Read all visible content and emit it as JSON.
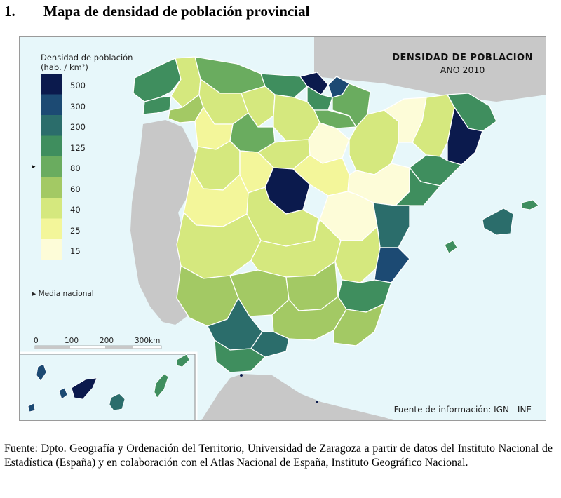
{
  "heading": {
    "number": "1.",
    "title": "Mapa de densidad de población provincial"
  },
  "map": {
    "title_line1": "DENSIDAD DE POBLACION",
    "title_line2": "ANO 2010",
    "legend_title_line1": "Densidad de población",
    "legend_title_line2": "(hab. / km²)",
    "legend_classes": [
      {
        "label": "500",
        "color": "#0b1a4d"
      },
      {
        "label": "300",
        "color": "#1c4a73"
      },
      {
        "label": "200",
        "color": "#2b6d6b"
      },
      {
        "label": "125",
        "color": "#3f8e5e"
      },
      {
        "label": "80",
        "color": "#6aac5f"
      },
      {
        "label": "60",
        "color": "#a3c964"
      },
      {
        "label": "40",
        "color": "#d5e87e"
      },
      {
        "label": "25",
        "color": "#f3f69a"
      },
      {
        "label": "15",
        "color": "#fdfcd8"
      }
    ],
    "media_marker": "▸",
    "media_label": "Media nacional",
    "scale_labels": [
      "0",
      "100",
      "200",
      "300km"
    ],
    "source_label": "Fuente de información: IGN - INE",
    "colors": {
      "sea": "#e7f7fa",
      "foreign_land": "#c8c8c8",
      "border": "#ffffff"
    }
  },
  "footer": {
    "source": "Fuente: Dpto. Geografía y Ordenación del Territorio, Universidad de Zaragoza a partir de datos del Instituto Nacional de Estadística (España) y en colaboración con el Atlas Nacional de España, Instituto Geográfico Nacional."
  }
}
